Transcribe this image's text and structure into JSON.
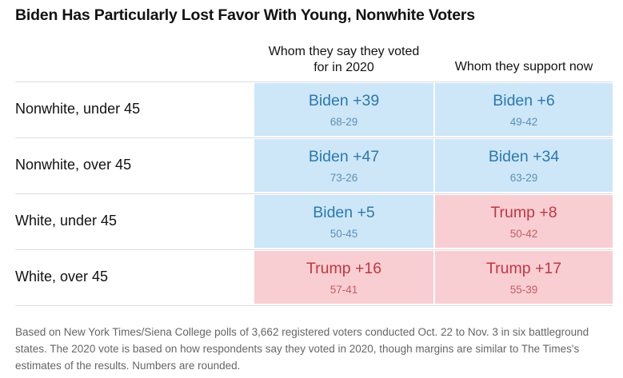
{
  "title": "Biden Has Particularly Lost Favor With Young, Nonwhite Voters",
  "columns": [
    "Whom they say they voted\nfor in 2020",
    "Whom they support now"
  ],
  "rows": [
    {
      "label": "Nonwhite, under 45",
      "cells": [
        {
          "leader": "Biden +39",
          "split": "68-29",
          "party": "biden"
        },
        {
          "leader": "Biden +6",
          "split": "49-42",
          "party": "biden"
        }
      ]
    },
    {
      "label": "Nonwhite, over 45",
      "cells": [
        {
          "leader": "Biden +47",
          "split": "73-26",
          "party": "biden"
        },
        {
          "leader": "Biden +34",
          "split": "63-29",
          "party": "biden"
        }
      ]
    },
    {
      "label": "White, under 45",
      "cells": [
        {
          "leader": "Biden +5",
          "split": "50-45",
          "party": "biden"
        },
        {
          "leader": "Trump +8",
          "split": "50-42",
          "party": "trump"
        }
      ]
    },
    {
      "label": "White, over 45",
      "cells": [
        {
          "leader": "Trump +16",
          "split": "57-41",
          "party": "trump"
        },
        {
          "leader": "Trump +17",
          "split": "55-39",
          "party": "trump"
        }
      ]
    }
  ],
  "note": "Based on New York Times/Siena College polls of 3,662 registered voters conducted Oct. 22 to Nov. 3 in six battleground states. The 2020 vote is based on how respondents say they voted in 2020, though margins are similar to The Times's estimates of the results. Numbers are rounded.",
  "colors": {
    "biden_fill": "#cde7f8",
    "biden_text": "#2c78b1",
    "trump_fill": "#f9ced3",
    "trump_text": "#c1373f"
  },
  "chart_data": {
    "type": "table",
    "title": "Biden Has Particularly Lost Favor With Young, Nonwhite Voters",
    "columns": [
      "Whom they say they voted for in 2020",
      "Whom they support now"
    ],
    "row_labels": [
      "Nonwhite, under 45",
      "Nonwhite, over 45",
      "White, under 45",
      "White, over 45"
    ],
    "values": [
      [
        {
          "leader": "Biden",
          "margin": 39,
          "biden": 68,
          "trump": 29
        },
        {
          "leader": "Biden",
          "margin": 6,
          "biden": 49,
          "trump": 42
        }
      ],
      [
        {
          "leader": "Biden",
          "margin": 47,
          "biden": 73,
          "trump": 26
        },
        {
          "leader": "Biden",
          "margin": 34,
          "biden": 63,
          "trump": 29
        }
      ],
      [
        {
          "leader": "Biden",
          "margin": 5,
          "biden": 50,
          "trump": 45
        },
        {
          "leader": "Trump",
          "margin": 8,
          "trump": 50,
          "biden": 42
        }
      ],
      [
        {
          "leader": "Trump",
          "margin": 16,
          "trump": 57,
          "biden": 41
        },
        {
          "leader": "Trump",
          "margin": 17,
          "trump": 55,
          "biden": 39
        }
      ]
    ]
  }
}
